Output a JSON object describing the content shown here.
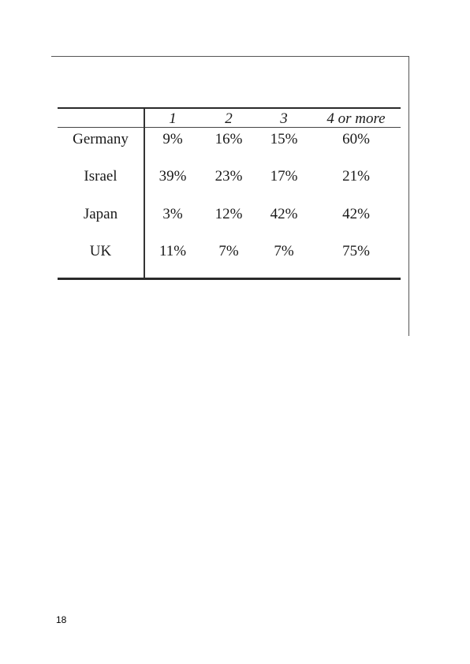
{
  "table": {
    "headers": [
      "1",
      "2",
      "3",
      "4 or more"
    ],
    "rows": [
      {
        "label": "Germany",
        "values": [
          "9%",
          "16%",
          "15%",
          "60%"
        ]
      },
      {
        "label": "Israel",
        "values": [
          "39%",
          "23%",
          "17%",
          "21%"
        ]
      },
      {
        "label": "Japan",
        "values": [
          "3%",
          "12%",
          "42%",
          "42%"
        ]
      },
      {
        "label": "UK",
        "values": [
          "11%",
          "7%",
          "7%",
          "75%"
        ]
      }
    ]
  },
  "page_number": "18"
}
